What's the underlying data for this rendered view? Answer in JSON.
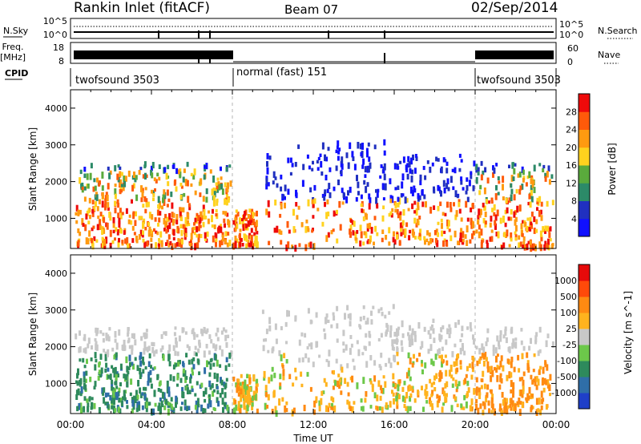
{
  "header": {
    "title": "Rankin Inlet (fitACF)",
    "beam": "Beam 07",
    "date": "02/Sep/2014"
  },
  "status_panels": {
    "nsky_label": "N.Sky",
    "freq_label_1": "Freq.",
    "freq_label_2": "[MHz]",
    "cpid_label": "CPID",
    "nsearch_label": "N.Search",
    "nave_label": "Nave",
    "left_ticks_top": [
      "10^5",
      "10^0"
    ],
    "left_ticks_freq": [
      "18",
      "8"
    ],
    "right_ticks_top": [
      "10^5",
      "10^0"
    ],
    "right_ticks_nave": [
      "60",
      "0"
    ],
    "cpid_segments": [
      {
        "label": "twofsound 3503",
        "start": 0,
        "end": 8
      },
      {
        "label": "normal (fast) 151",
        "start": 8,
        "end": 20
      },
      {
        "label": "twofsound 3503",
        "start": 20,
        "end": 24
      }
    ]
  },
  "chart_data": [
    {
      "type": "heatmap",
      "name": "power-panel",
      "ylabel": "Slant Range [km]",
      "xlabel": "Time UT",
      "xlim": [
        0,
        24
      ],
      "ylim": [
        180,
        4500
      ],
      "x_ticks": [
        "00:00",
        "04:00",
        "08:00",
        "12:00",
        "16:00",
        "20:00",
        "00:00"
      ],
      "y_ticks": [
        1000,
        2000,
        3000,
        4000
      ],
      "colorbar": {
        "label": "Power [dB]",
        "ticks": [
          "4",
          "8",
          "12",
          "16",
          "20",
          "24",
          "28"
        ],
        "colors": [
          "#1010ff",
          "#2030c0",
          "#2c8a68",
          "#5aaa3c",
          "#ffd21e",
          "#ff9a10",
          "#ff5a0a",
          "#ee0a0a"
        ]
      }
    },
    {
      "type": "heatmap",
      "name": "velocity-panel",
      "ylabel": "Slant Range [km]",
      "xlabel": "Time UT",
      "xlim": [
        0,
        24
      ],
      "ylim": [
        180,
        4500
      ],
      "x_ticks": [
        "00:00",
        "04:00",
        "08:00",
        "12:00",
        "16:00",
        "20:00",
        "00:00"
      ],
      "y_ticks": [
        1000,
        2000,
        3000,
        4000
      ],
      "colorbar": {
        "label": "Velocity [m s^-1]",
        "ticks": [
          "1000",
          "500",
          "100",
          "25",
          "-25",
          "-100",
          "-500",
          "-1000"
        ],
        "colors": [
          "#1f3fc8",
          "#2f6ea8",
          "#2e8a5c",
          "#6cc84a",
          "#c8c8c8",
          "#ffb31e",
          "#ff8a12",
          "#ff4a0a",
          "#e60a0a"
        ]
      }
    }
  ],
  "footer": {
    "xlabel": "Time UT"
  }
}
